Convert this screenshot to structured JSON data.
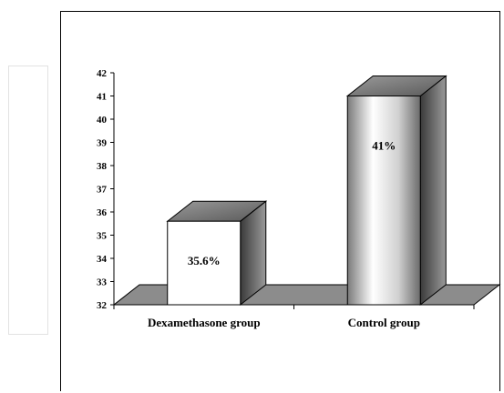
{
  "chart_data": {
    "type": "bar",
    "categories": [
      "Dexamethasone group",
      "Control group"
    ],
    "values": [
      35.6,
      41
    ],
    "data_labels": [
      "35.6%",
      "41%"
    ],
    "ylim": [
      32,
      42
    ],
    "yticks": [
      "32",
      "33",
      "34",
      "35",
      "36",
      "37",
      "38",
      "39",
      "40",
      "41",
      "42"
    ],
    "style": "3d-column",
    "grid": false,
    "legend": "none"
  }
}
